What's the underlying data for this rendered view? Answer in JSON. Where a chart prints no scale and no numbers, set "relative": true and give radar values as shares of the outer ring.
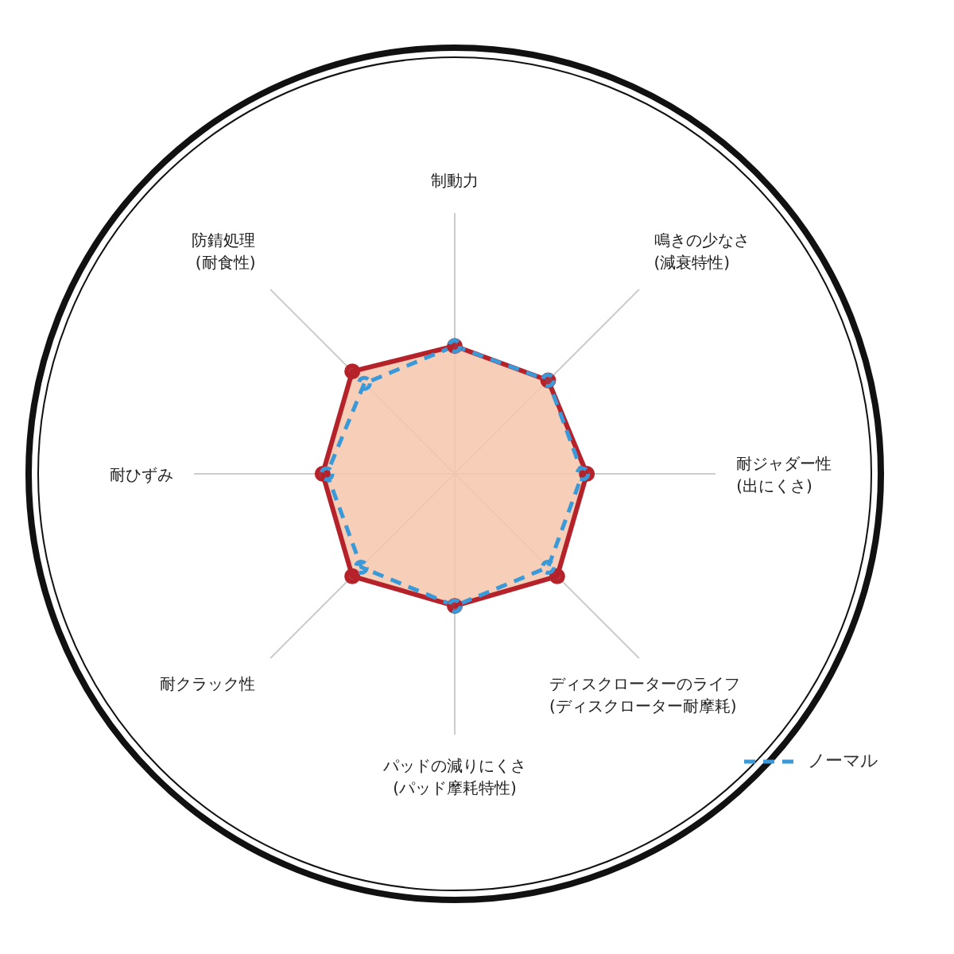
{
  "chart_data": {
    "type": "radar",
    "relative": true,
    "categories": [
      "制動力",
      "鳴きの少なさ\n(減衰特性)",
      "耐ジャダー性\n(出にくさ)",
      "ディスクローターのライフ\n(ディスクローター耐摩耗)",
      "パッドの減りにくさ\n(パッド摩耗特性)",
      "耐クラック性",
      "耐ひずみ",
      "防錆処理\n(耐食性)"
    ],
    "series": [
      {
        "color": "#b5222a",
        "line_style": "solid",
        "values": [
          0.3,
          0.31,
          0.31,
          0.34,
          0.31,
          0.34,
          0.31,
          0.34
        ]
      },
      {
        "name": "ノーマル",
        "color": "#3a9ad9",
        "line_style": "dashed",
        "values": [
          0.3,
          0.31,
          0.3,
          0.31,
          0.31,
          0.31,
          0.3,
          0.3
        ]
      }
    ],
    "marker": "circle",
    "legend": "bottom right",
    "grid": true
  }
}
